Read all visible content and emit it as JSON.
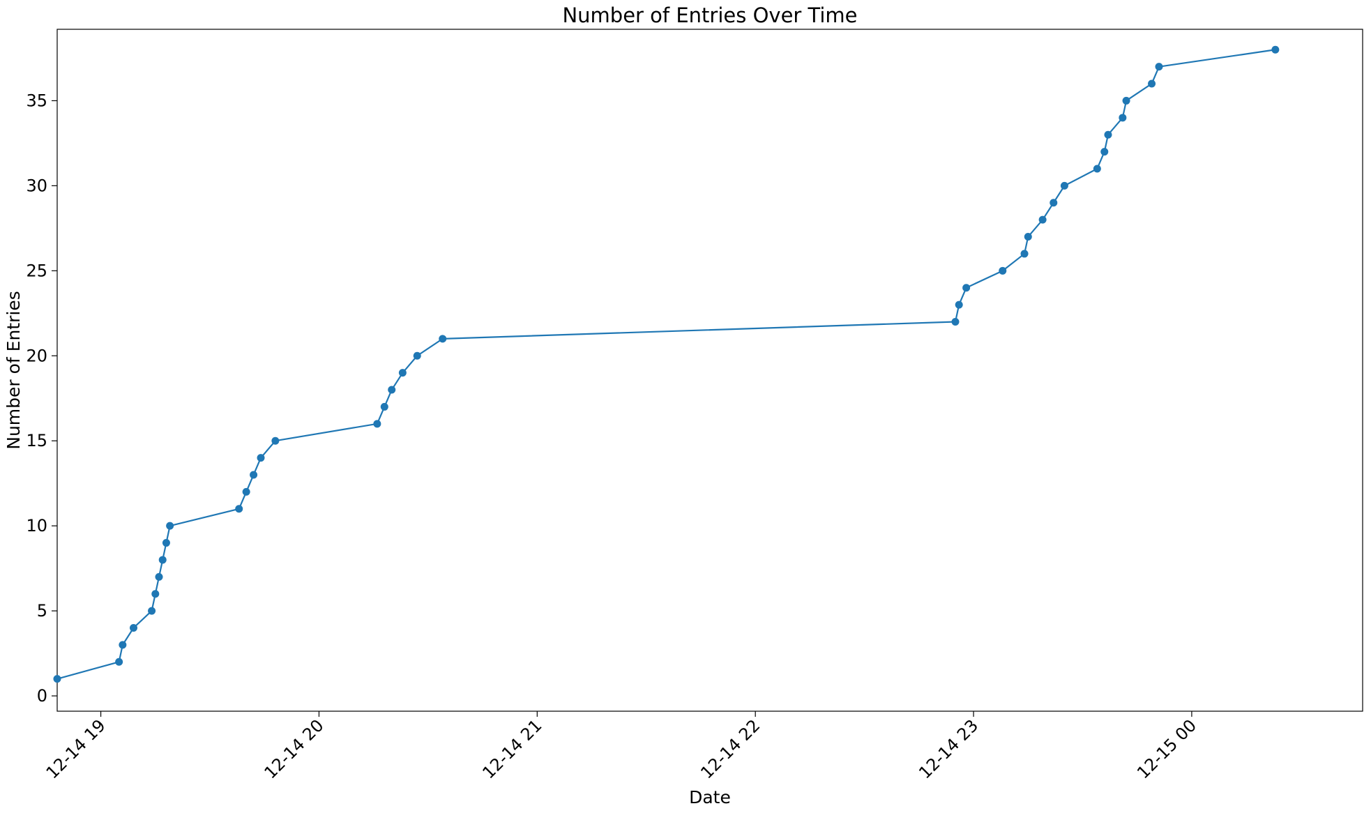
{
  "chart_data": {
    "type": "line",
    "title": "Number of Entries Over Time",
    "xlabel": "Date",
    "ylabel": "Number of Entries",
    "series_color": "#1f77b4",
    "grid": false,
    "legend": "none",
    "xlim": [
      "12-14 18:48",
      "12-15 00:47"
    ],
    "ylim": [
      -0.9,
      39.2
    ],
    "x_ticks": [
      {
        "value": "12-14 19:00",
        "label": "12-14 19"
      },
      {
        "value": "12-14 20:00",
        "label": "12-14 20"
      },
      {
        "value": "12-14 21:00",
        "label": "12-14 21"
      },
      {
        "value": "12-14 22:00",
        "label": "12-14 22"
      },
      {
        "value": "12-14 23:00",
        "label": "12-14 23"
      },
      {
        "value": "12-15 00:00",
        "label": "12-15 00"
      }
    ],
    "y_ticks": [
      {
        "value": 0,
        "label": "0"
      },
      {
        "value": 5,
        "label": "5"
      },
      {
        "value": 10,
        "label": "10"
      },
      {
        "value": 15,
        "label": "15"
      },
      {
        "value": 20,
        "label": "20"
      },
      {
        "value": 25,
        "label": "25"
      },
      {
        "value": 30,
        "label": "30"
      },
      {
        "value": 35,
        "label": "35"
      }
    ],
    "points": [
      {
        "x": "12-14 18:48",
        "y": 1
      },
      {
        "x": "12-14 19:05",
        "y": 2
      },
      {
        "x": "12-14 19:06",
        "y": 3
      },
      {
        "x": "12-14 19:09",
        "y": 4
      },
      {
        "x": "12-14 19:14",
        "y": 5
      },
      {
        "x": "12-14 19:15",
        "y": 6
      },
      {
        "x": "12-14 19:16",
        "y": 7
      },
      {
        "x": "12-14 19:17",
        "y": 8
      },
      {
        "x": "12-14 19:18",
        "y": 9
      },
      {
        "x": "12-14 19:19",
        "y": 10
      },
      {
        "x": "12-14 19:38",
        "y": 11
      },
      {
        "x": "12-14 19:40",
        "y": 12
      },
      {
        "x": "12-14 19:42",
        "y": 13
      },
      {
        "x": "12-14 19:44",
        "y": 14
      },
      {
        "x": "12-14 19:48",
        "y": 15
      },
      {
        "x": "12-14 20:16",
        "y": 16
      },
      {
        "x": "12-14 20:18",
        "y": 17
      },
      {
        "x": "12-14 20:20",
        "y": 18
      },
      {
        "x": "12-14 20:23",
        "y": 19
      },
      {
        "x": "12-14 20:27",
        "y": 20
      },
      {
        "x": "12-14 20:34",
        "y": 21
      },
      {
        "x": "12-14 22:55",
        "y": 22
      },
      {
        "x": "12-14 22:56",
        "y": 23
      },
      {
        "x": "12-14 22:58",
        "y": 24
      },
      {
        "x": "12-14 23:08",
        "y": 25
      },
      {
        "x": "12-14 23:14",
        "y": 26
      },
      {
        "x": "12-14 23:15",
        "y": 27
      },
      {
        "x": "12-14 23:19",
        "y": 28
      },
      {
        "x": "12-14 23:22",
        "y": 29
      },
      {
        "x": "12-14 23:25",
        "y": 30
      },
      {
        "x": "12-14 23:34",
        "y": 31
      },
      {
        "x": "12-14 23:36",
        "y": 32
      },
      {
        "x": "12-14 23:37",
        "y": 33
      },
      {
        "x": "12-14 23:41",
        "y": 34
      },
      {
        "x": "12-14 23:42",
        "y": 35
      },
      {
        "x": "12-14 23:49",
        "y": 36
      },
      {
        "x": "12-14 23:51",
        "y": 37
      },
      {
        "x": "12-15 00:23",
        "y": 38
      }
    ]
  }
}
